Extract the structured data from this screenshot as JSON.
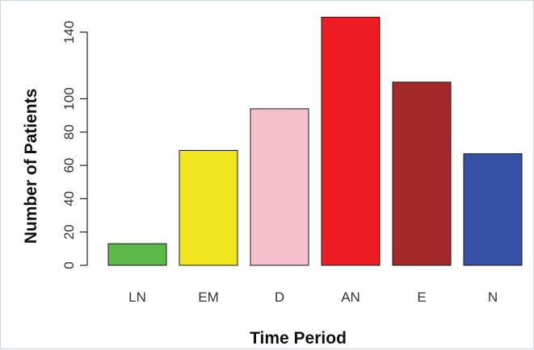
{
  "chart_data": {
    "type": "bar",
    "title": "",
    "xlabel": "Time Period",
    "ylabel": "Number of Patients",
    "categories": [
      "LN",
      "EM",
      "D",
      "AN",
      "E",
      "N"
    ],
    "values": [
      13,
      69,
      94,
      149,
      110,
      67
    ],
    "colors": [
      "#5ab947",
      "#f0e61d",
      "#f6bfcc",
      "#ee1c24",
      "#a5282b",
      "#3650a5"
    ],
    "yticks": [
      0,
      20,
      40,
      60,
      80,
      100,
      140
    ],
    "ylim": [
      0,
      150
    ],
    "grid": false,
    "legend": "none"
  }
}
